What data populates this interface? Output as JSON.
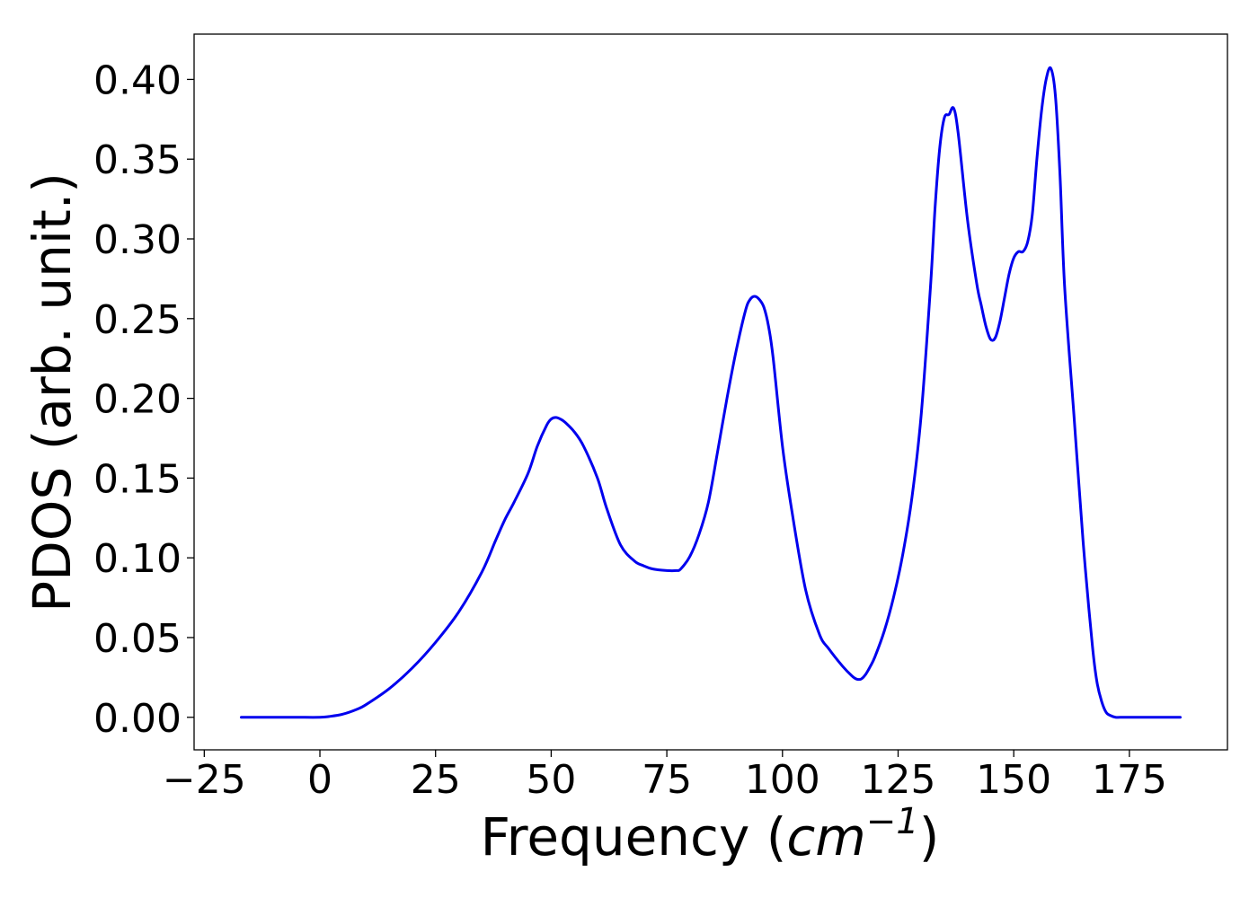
{
  "chart_data": {
    "type": "line",
    "title": "",
    "xlabel": "Frequency (",
    "xlabel_math_base": "cm",
    "xlabel_math_sup": "−1",
    "xlabel_suffix": ")",
    "ylabel": "PDOS (arb. unit.)",
    "xlim": [
      -27.2,
      196.2
    ],
    "ylim": [
      -0.0204,
      0.4284
    ],
    "x_ticks": [
      -25,
      0,
      25,
      50,
      75,
      100,
      125,
      150,
      175
    ],
    "x_tick_labels": [
      "−25",
      "0",
      "25",
      "50",
      "75",
      "100",
      "125",
      "150",
      "175"
    ],
    "y_ticks": [
      0.0,
      0.05,
      0.1,
      0.15,
      0.2,
      0.25,
      0.3,
      0.35,
      0.4
    ],
    "y_tick_labels": [
      "0.00",
      "0.05",
      "0.10",
      "0.15",
      "0.20",
      "0.25",
      "0.30",
      "0.35",
      "0.40"
    ],
    "grid": false,
    "legend": "none",
    "series": [
      {
        "color": "#0000ee",
        "x": [
          -17,
          -10,
          -5,
          0,
          2,
          5,
          8,
          10,
          15,
          20,
          25,
          30,
          35,
          38,
          40,
          42,
          45,
          47,
          49,
          50,
          51,
          52,
          53,
          55,
          57,
          60,
          62,
          65,
          68,
          70,
          72,
          75,
          77,
          78,
          80,
          82,
          84,
          86,
          88,
          90,
          92,
          93,
          94,
          95,
          96,
          97,
          98,
          100,
          102,
          105,
          108,
          110,
          113,
          115,
          116,
          117,
          118,
          119,
          120,
          122,
          124,
          126,
          128,
          130,
          132,
          133,
          134,
          135,
          136,
          137,
          138,
          140,
          142,
          143,
          144,
          145,
          146,
          147,
          148,
          149,
          150,
          151,
          152,
          153,
          154,
          155,
          156,
          157,
          158,
          159,
          160,
          161,
          163,
          165,
          167,
          168,
          169,
          170,
          171,
          172,
          173,
          175,
          180,
          186
        ],
        "y": [
          0.0,
          0.0,
          0.0,
          0.0,
          0.0005,
          0.002,
          0.005,
          0.008,
          0.018,
          0.031,
          0.047,
          0.066,
          0.091,
          0.111,
          0.124,
          0.135,
          0.153,
          0.17,
          0.183,
          0.187,
          0.188,
          0.187,
          0.185,
          0.179,
          0.17,
          0.15,
          0.131,
          0.108,
          0.098,
          0.095,
          0.093,
          0.092,
          0.092,
          0.093,
          0.101,
          0.115,
          0.135,
          0.167,
          0.2,
          0.23,
          0.255,
          0.262,
          0.264,
          0.262,
          0.257,
          0.245,
          0.225,
          0.17,
          0.13,
          0.08,
          0.052,
          0.043,
          0.032,
          0.026,
          0.024,
          0.024,
          0.027,
          0.032,
          0.038,
          0.054,
          0.075,
          0.102,
          0.138,
          0.19,
          0.27,
          0.32,
          0.357,
          0.376,
          0.378,
          0.382,
          0.366,
          0.312,
          0.272,
          0.258,
          0.245,
          0.237,
          0.238,
          0.248,
          0.263,
          0.278,
          0.288,
          0.292,
          0.292,
          0.298,
          0.315,
          0.35,
          0.38,
          0.4,
          0.407,
          0.39,
          0.34,
          0.27,
          0.19,
          0.11,
          0.045,
          0.022,
          0.01,
          0.003,
          0.001,
          0.0,
          0.0,
          0.0,
          0.0,
          0.0
        ]
      }
    ]
  }
}
